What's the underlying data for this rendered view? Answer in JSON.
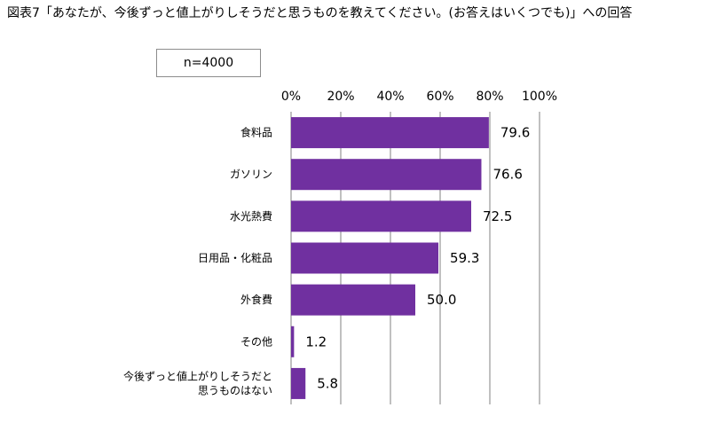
{
  "title": "図表7「あなたが、今後ずっと値上がりしそうだと思うものを教えてください。(お答えはいくつでも)」への回答",
  "sample_size": "n=4000",
  "chart_data": {
    "type": "bar",
    "orientation": "horizontal",
    "title": "図表7「あなたが、今後ずっと値上がりしそうだと思うものを教えてください。(お答えはいくつでも)」への回答",
    "categories": [
      [
        "食料品"
      ],
      [
        "ガソリン"
      ],
      [
        "水光熱費"
      ],
      [
        "日用品・化粧品"
      ],
      [
        "外食費"
      ],
      [
        "その他"
      ],
      [
        "今後ずっと値上がりしそうだと",
        "思うものはない"
      ]
    ],
    "values": [
      79.6,
      76.6,
      72.5,
      59.3,
      50.0,
      1.2,
      5.8
    ],
    "value_labels": [
      "79.6",
      "76.6",
      "72.5",
      "59.3",
      "50.0",
      "1.2",
      "5.8"
    ],
    "xlim": [
      0,
      100
    ],
    "xticks": [
      0,
      20,
      40,
      60,
      80,
      100
    ],
    "xtick_labels": [
      "0%",
      "20%",
      "40%",
      "60%",
      "80%",
      "100%"
    ],
    "axis_position": "top",
    "grid": true,
    "bar_color": "#7030a0",
    "grid_color": "#808080"
  }
}
